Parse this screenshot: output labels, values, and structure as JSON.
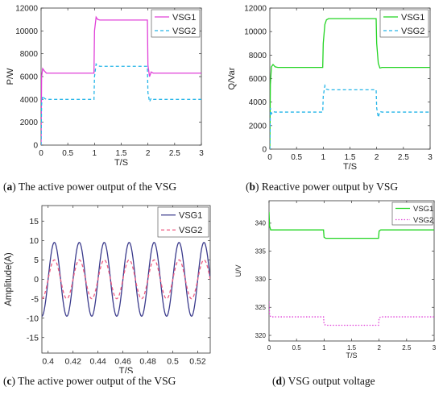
{
  "captions": [
    {
      "letter": "a",
      "open": "(",
      "close": ") ",
      "text": "The active power output of the VSG"
    },
    {
      "letter": "b",
      "open": "(",
      "close": ") ",
      "text": "Reactive power output by VSG"
    },
    {
      "letter": "c",
      "open": "(",
      "close": ") ",
      "text": "The active power output of the VSG"
    },
    {
      "letter": "d",
      "open": "(",
      "close": ") ",
      "text": "VSG output voltage"
    }
  ],
  "chart_data": [
    {
      "type": "line",
      "xlabel": "T/S",
      "ylabel": "P/W",
      "xlim": [
        0,
        3
      ],
      "ylim": [
        0,
        12000
      ],
      "xticks": [
        "0",
        "0.5",
        "1",
        "1.5",
        "2",
        "2.5",
        "3"
      ],
      "yticks": [
        "0",
        "2000",
        "4000",
        "6000",
        "8000",
        "10000",
        "12000"
      ],
      "legend_position": "top-right",
      "grid": false,
      "series": [
        {
          "name": "VSG1",
          "color": "#e040d8",
          "style": "solid",
          "x": [
            0,
            0.01,
            0.03,
            0.06,
            0.1,
            0.15,
            0.3,
            0.99,
            1.0,
            1.03,
            1.06,
            1.1,
            1.2,
            1.99,
            2.0,
            2.03,
            2.06,
            2.1,
            2.2,
            3.0
          ],
          "y": [
            0,
            6000,
            6700,
            6500,
            6300,
            6300,
            6300,
            6300,
            10000,
            11200,
            11000,
            10950,
            10950,
            10950,
            7000,
            6000,
            6400,
            6300,
            6300,
            6300
          ]
        },
        {
          "name": "VSG2",
          "color": "#25b5e8",
          "style": "dashed",
          "x": [
            0,
            0.01,
            0.03,
            0.06,
            0.1,
            0.15,
            0.3,
            0.99,
            1.0,
            1.03,
            1.06,
            1.1,
            1.2,
            1.99,
            2.0,
            2.03,
            2.06,
            2.1,
            2.2,
            3.0
          ],
          "y": [
            0,
            3600,
            4300,
            4100,
            4000,
            4000,
            4000,
            4000,
            6000,
            7100,
            6950,
            6900,
            6900,
            6900,
            4600,
            3800,
            4100,
            4000,
            4000,
            4000
          ]
        }
      ]
    },
    {
      "type": "line",
      "xlabel": "T/S",
      "ylabel": "Q/Var",
      "xlim": [
        0,
        3
      ],
      "ylim": [
        0,
        12000
      ],
      "xticks": [
        "0",
        "0.5",
        "1",
        "1.5",
        "2",
        "2.5",
        "3"
      ],
      "yticks": [
        "0",
        "2000",
        "4000",
        "6000",
        "8000",
        "10000",
        "12000"
      ],
      "legend_position": "top-right",
      "grid": false,
      "series": [
        {
          "name": "VSG1",
          "color": "#22d422",
          "style": "solid",
          "x": [
            0,
            0.01,
            0.03,
            0.06,
            0.1,
            0.15,
            0.3,
            0.99,
            1.0,
            1.03,
            1.06,
            1.1,
            1.2,
            1.99,
            2.0,
            2.03,
            2.06,
            2.1,
            2.2,
            3.0
          ],
          "y": [
            0,
            5500,
            7000,
            7200,
            7000,
            6950,
            6950,
            6950,
            9000,
            10600,
            11000,
            11100,
            11100,
            11100,
            9000,
            7300,
            6900,
            6950,
            6950,
            6950
          ]
        },
        {
          "name": "VSG2",
          "color": "#25b5e8",
          "style": "dashed",
          "x": [
            0,
            0.01,
            0.03,
            0.06,
            0.1,
            0.15,
            0.3,
            0.99,
            1.0,
            1.03,
            1.06,
            1.1,
            1.2,
            1.99,
            2.0,
            2.03,
            2.06,
            2.1,
            2.2,
            3.0
          ],
          "y": [
            0,
            3500,
            3000,
            3200,
            3150,
            3150,
            3150,
            3150,
            4500,
            5400,
            5100,
            5050,
            5050,
            5050,
            3500,
            2700,
            3200,
            3150,
            3150,
            3150
          ]
        }
      ]
    },
    {
      "type": "line",
      "xlabel": "T/S",
      "ylabel": "Amplitude(A)",
      "xlim": [
        0.395,
        0.53
      ],
      "ylim": [
        -19,
        19
      ],
      "xticks": [
        "0.4",
        "0.42",
        "0.44",
        "0.46",
        "0.48",
        "0.5",
        "0.52"
      ],
      "yticks": [
        "-15",
        "-10",
        "-5",
        "0",
        "5",
        "10",
        "15"
      ],
      "legend_position": "top-right",
      "grid": false,
      "series": [
        {
          "name": "VSG1",
          "color": "#3b3b8c",
          "style": "solid",
          "amplitude": 9.5,
          "frequency_hz": 50,
          "phase_deg": 0
        },
        {
          "name": "VSG2",
          "color": "#ee5a80",
          "style": "dashed",
          "amplitude": 5.0,
          "frequency_hz": 50,
          "phase_deg": 0
        }
      ]
    },
    {
      "type": "line",
      "xlabel": "T/S",
      "ylabel": "U/V",
      "xlim": [
        0,
        3
      ],
      "ylim": [
        319,
        344
      ],
      "xticks": [
        "0",
        "0.5",
        "1",
        "1.5",
        "2",
        "2.5",
        "3"
      ],
      "yticks": [
        "320",
        "325",
        "330",
        "335",
        "340"
      ],
      "legend_position": "top-right",
      "grid": false,
      "series": [
        {
          "name": "VSG1",
          "color": "#22d422",
          "style": "solid",
          "x": [
            0,
            0.01,
            0.03,
            0.06,
            0.1,
            0.99,
            1.0,
            1.03,
            1.99,
            2.0,
            2.03,
            3.0
          ],
          "y": [
            342,
            339.5,
            338.8,
            338.8,
            338.8,
            338.8,
            337.5,
            337.3,
            337.3,
            338.6,
            338.8,
            338.8
          ]
        },
        {
          "name": "VSG2",
          "color": "#e040d8",
          "style": "dotted",
          "x": [
            0,
            0.01,
            0.03,
            0.06,
            0.1,
            0.99,
            1.0,
            1.03,
            1.99,
            2.0,
            2.03,
            3.0
          ],
          "y": [
            326,
            323.8,
            323.3,
            323.3,
            323.3,
            323.3,
            322.0,
            321.8,
            321.8,
            323.1,
            323.3,
            323.3
          ]
        }
      ]
    }
  ]
}
